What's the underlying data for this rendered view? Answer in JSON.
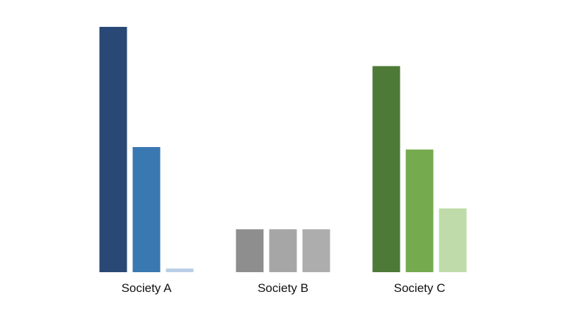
{
  "chart_data": {
    "type": "bar",
    "title": "",
    "xlabel": "",
    "ylabel": "",
    "ylim": [
      0,
      100
    ],
    "grid": false,
    "legend": "none",
    "categories": [
      "Society A",
      "Society B",
      "Society C"
    ],
    "groups": [
      {
        "category": "Society A",
        "values": [
          100,
          51,
          1.5
        ],
        "colors": [
          "#2A4875",
          "#3A78B2",
          "#B9CFE6"
        ]
      },
      {
        "category": "Society B",
        "values": [
          17.5,
          17.5,
          17.5
        ],
        "colors": [
          "#8E8E8E",
          "#A6A6A6",
          "#ADADAD"
        ]
      },
      {
        "category": "Society C",
        "values": [
          84,
          50,
          26
        ],
        "colors": [
          "#4E7A37",
          "#76AA4E",
          "#BFDBA9"
        ]
      }
    ]
  }
}
